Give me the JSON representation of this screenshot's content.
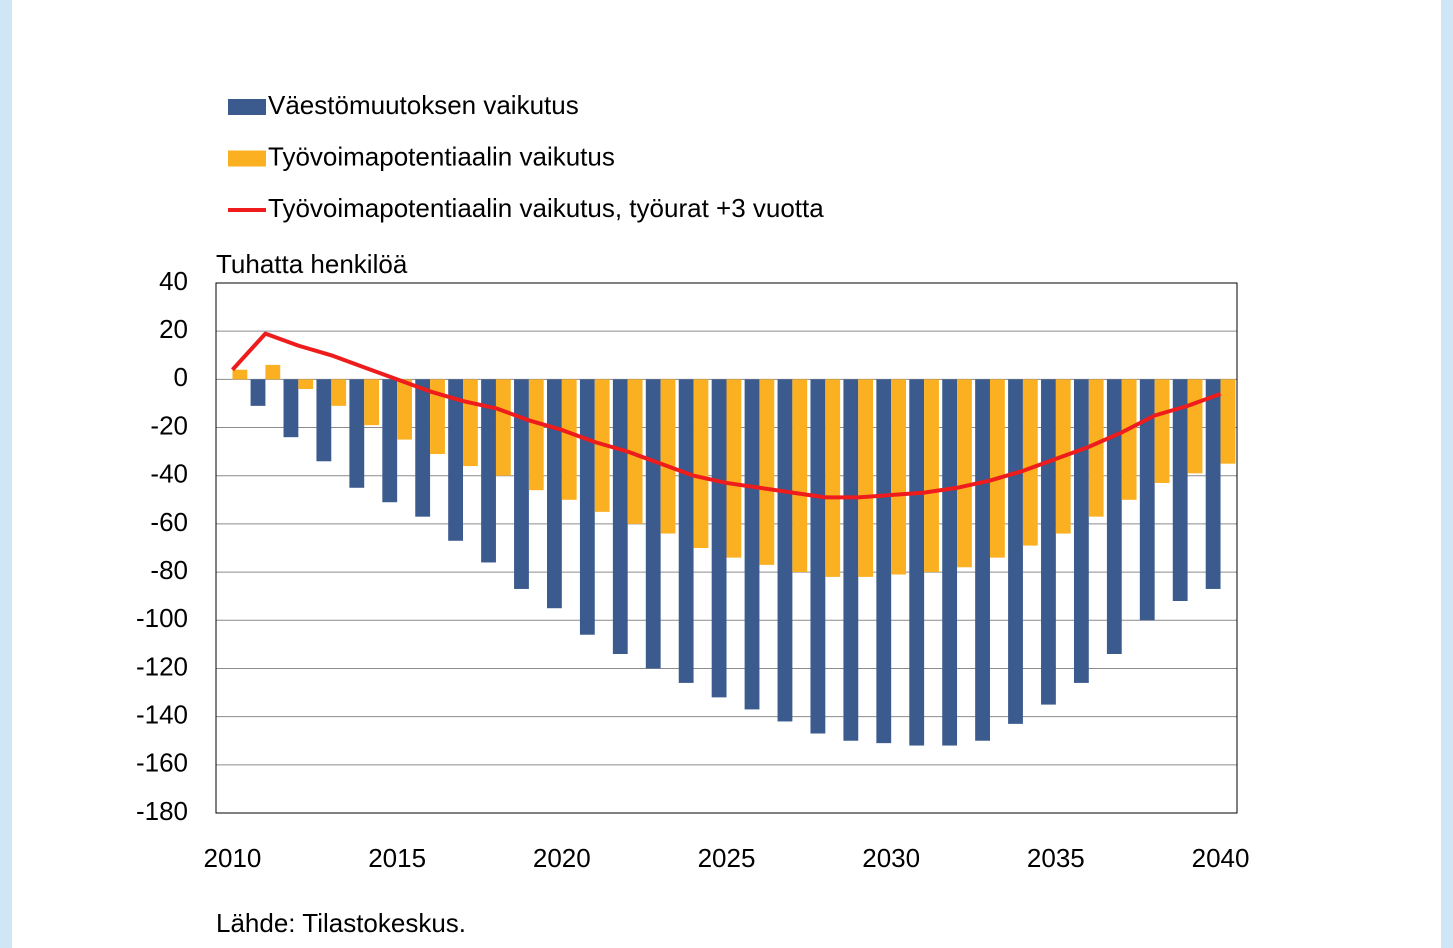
{
  "chart_data": {
    "type": "bar",
    "ylabel": "Tuhatta henkilöä",
    "source": "Lähde: Tilastokeskus.",
    "categories": [
      "2010",
      null,
      null,
      null,
      null,
      "2015",
      null,
      null,
      null,
      null,
      "2020",
      null,
      null,
      null,
      null,
      "2025",
      null,
      null,
      null,
      null,
      "2030",
      null,
      null,
      null,
      null,
      "2035",
      null,
      null,
      null,
      null,
      "2040"
    ],
    "series": [
      {
        "name": "Väestömuutoksen vaikutus",
        "type": "bar",
        "color": "#3b5a8e",
        "values": [
          0,
          -11,
          -24,
          -34,
          -45,
          -51,
          -57,
          -67,
          -76,
          -87,
          -95,
          -106,
          -114,
          -120,
          -126,
          -132,
          -137,
          -142,
          -147,
          -150,
          -151,
          -152,
          -152,
          -150,
          -143,
          -135,
          -126,
          -114,
          -100,
          -92,
          -87
        ]
      },
      {
        "name": "Työvoimapotentiaalin vaikutus",
        "type": "bar",
        "color": "#fbb022",
        "values": [
          4,
          6,
          -4,
          -11,
          -19,
          -25,
          -31,
          -36,
          -40,
          -46,
          -50,
          -55,
          -60,
          -64,
          -70,
          -74,
          -77,
          -80,
          -82,
          -82,
          -81,
          -80,
          -78,
          -74,
          -69,
          -64,
          -57,
          -50,
          -43,
          -39,
          -35
        ]
      },
      {
        "name": "Työvoimapotentiaalin vaikutus, työurat +3 vuotta",
        "type": "line",
        "color": "#ee1c1c",
        "values": [
          4,
          19,
          14,
          10,
          5,
          0,
          -5,
          -9,
          -12,
          -17,
          -21,
          -26,
          -30,
          -35,
          -40,
          -43,
          -45,
          -47,
          -49,
          -49,
          -48,
          -47,
          -45,
          -42,
          -38,
          -33,
          -28,
          -22,
          -15,
          -11,
          -6
        ]
      }
    ],
    "ylim": [
      -180,
      40
    ],
    "yticks": [
      -180,
      -160,
      -140,
      -120,
      -100,
      -80,
      -60,
      -40,
      -20,
      0,
      20,
      40
    ],
    "grid": true
  }
}
